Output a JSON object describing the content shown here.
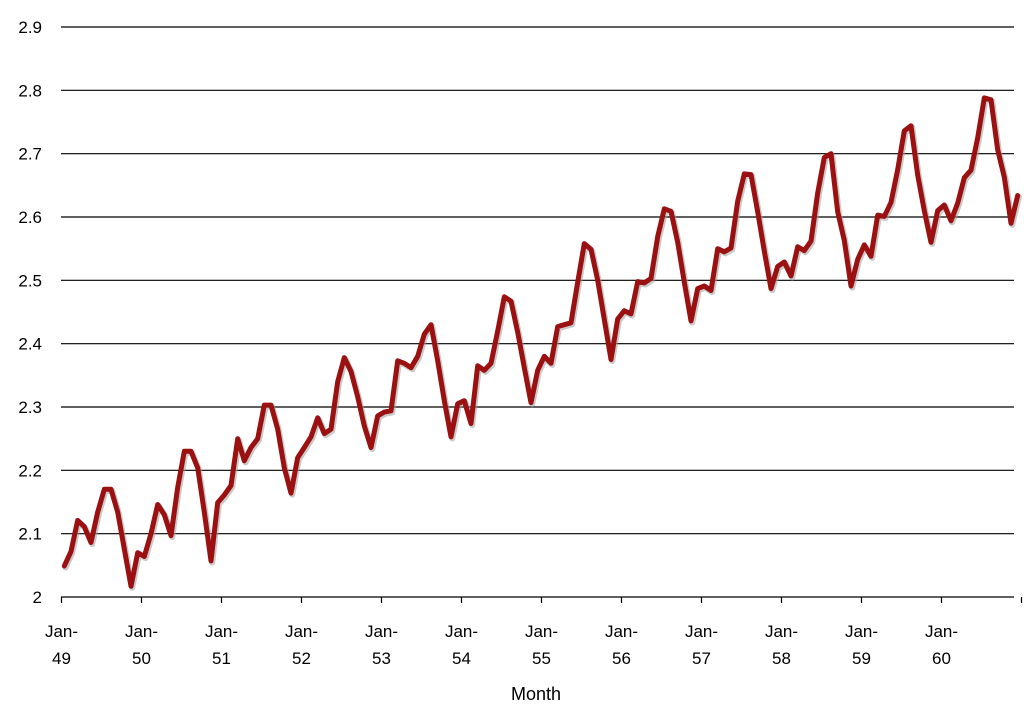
{
  "chart_data": {
    "type": "line",
    "title": "",
    "xlabel": "Month",
    "ylabel": "",
    "ylim": [
      2.0,
      2.9
    ],
    "y_ticks": [
      "2",
      "2.1",
      "2.2",
      "2.3",
      "2.4",
      "2.5",
      "2.6",
      "2.7",
      "2.8",
      "2.9"
    ],
    "x_ticks": [
      {
        "line1": "Jan-",
        "line2": "49"
      },
      {
        "line1": "Jan-",
        "line2": "50"
      },
      {
        "line1": "Jan-",
        "line2": "51"
      },
      {
        "line1": "Jan-",
        "line2": "52"
      },
      {
        "line1": "Jan-",
        "line2": "53"
      },
      {
        "line1": "Jan-",
        "line2": "54"
      },
      {
        "line1": "Jan-",
        "line2": "55"
      },
      {
        "line1": "Jan-",
        "line2": "56"
      },
      {
        "line1": "Jan-",
        "line2": "57"
      },
      {
        "line1": "Jan-",
        "line2": "58"
      },
      {
        "line1": "Jan-",
        "line2": "59"
      },
      {
        "line1": "Jan-",
        "line2": "60"
      }
    ],
    "grid": true,
    "legend": "none",
    "line_color": "#9b1010",
    "series": [
      {
        "values": [
          2.049,
          2.072,
          2.121,
          2.111,
          2.086,
          2.134,
          2.17,
          2.17,
          2.134,
          2.076,
          2.017,
          2.07,
          2.064,
          2.1,
          2.146,
          2.13,
          2.097,
          2.173,
          2.23,
          2.23,
          2.204,
          2.134,
          2.057,
          2.149,
          2.161,
          2.176,
          2.25,
          2.215,
          2.236,
          2.25,
          2.303,
          2.303,
          2.265,
          2.204,
          2.164,
          2.22,
          2.236,
          2.253,
          2.283,
          2.258,
          2.265,
          2.34,
          2.378,
          2.356,
          2.316,
          2.27,
          2.236,
          2.286,
          2.292,
          2.294,
          2.373,
          2.369,
          2.362,
          2.38,
          2.415,
          2.43,
          2.373,
          2.31,
          2.253,
          2.305,
          2.31,
          2.274,
          2.365,
          2.358,
          2.369,
          2.42,
          2.474,
          2.467,
          2.418,
          2.362,
          2.307,
          2.358,
          2.38,
          2.369,
          2.427,
          2.43,
          2.433,
          2.497,
          2.558,
          2.549,
          2.5,
          2.438,
          2.375,
          2.439,
          2.452,
          2.447,
          2.498,
          2.496,
          2.503,
          2.569,
          2.613,
          2.609,
          2.56,
          2.497,
          2.436,
          2.487,
          2.491,
          2.484,
          2.55,
          2.545,
          2.551,
          2.625,
          2.668,
          2.667,
          2.608,
          2.546,
          2.487,
          2.522,
          2.529,
          2.507,
          2.553,
          2.547,
          2.562,
          2.638,
          2.694,
          2.7,
          2.608,
          2.563,
          2.491,
          2.533,
          2.556,
          2.538,
          2.603,
          2.601,
          2.623,
          2.675,
          2.736,
          2.744,
          2.666,
          2.61,
          2.56,
          2.61,
          2.619,
          2.594,
          2.622,
          2.662,
          2.674,
          2.725,
          2.788,
          2.785,
          2.706,
          2.663,
          2.59,
          2.634
        ]
      }
    ]
  }
}
